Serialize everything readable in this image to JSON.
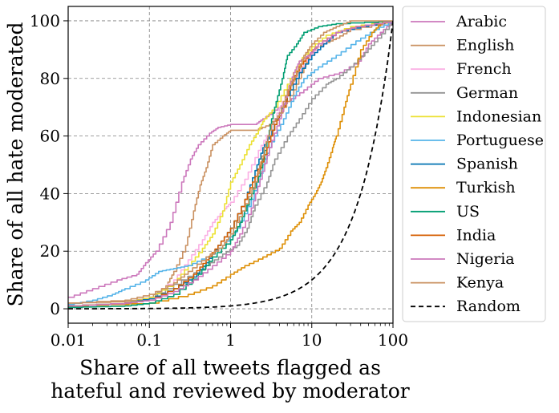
{
  "chart_data": {
    "type": "line",
    "x_scale": "log",
    "xlim": [
      0.01,
      100
    ],
    "ylim": [
      -5,
      105
    ],
    "grid": true,
    "grid_style": "dashed",
    "legend_position": "outside-right",
    "xlabel_lines": [
      "Share of all tweets flagged as",
      "hateful and reviewed by moderator"
    ],
    "ylabel": "Share of all hate moderated",
    "x_ticks": [
      {
        "value": 0.01,
        "label": "0.01"
      },
      {
        "value": 0.1,
        "label": "0.1"
      },
      {
        "value": 1,
        "label": "1"
      },
      {
        "value": 10,
        "label": "10"
      },
      {
        "value": 100,
        "label": "100"
      }
    ],
    "y_ticks": [
      {
        "value": 0,
        "label": "0"
      },
      {
        "value": 20,
        "label": "20"
      },
      {
        "value": 40,
        "label": "40"
      },
      {
        "value": 60,
        "label": "60"
      },
      {
        "value": 80,
        "label": "80"
      },
      {
        "value": 100,
        "label": "100"
      }
    ],
    "series": [
      {
        "name": "Arabic",
        "color": "#cc78bc",
        "dash": "solid",
        "points": [
          [
            0.01,
            4
          ],
          [
            0.02,
            7
          ],
          [
            0.04,
            10
          ],
          [
            0.07,
            12
          ],
          [
            0.09,
            16
          ],
          [
            0.12,
            20
          ],
          [
            0.18,
            30
          ],
          [
            0.25,
            44
          ],
          [
            0.32,
            52
          ],
          [
            0.4,
            57
          ],
          [
            0.55,
            61
          ],
          [
            0.7,
            63
          ],
          [
            1.0,
            64
          ],
          [
            2.0,
            64
          ],
          [
            2.5,
            66
          ],
          [
            3.5,
            69
          ],
          [
            5,
            72
          ],
          [
            8,
            76
          ],
          [
            12,
            80
          ],
          [
            22,
            82
          ],
          [
            38,
            86
          ],
          [
            50,
            92
          ],
          [
            70,
            96
          ],
          [
            100,
            100
          ]
        ]
      },
      {
        "name": "English",
        "color": "#ca9161",
        "dash": "solid",
        "points": [
          [
            0.01,
            2
          ],
          [
            0.05,
            2.5
          ],
          [
            0.1,
            4
          ],
          [
            0.16,
            8
          ],
          [
            0.2,
            13
          ],
          [
            0.28,
            22
          ],
          [
            0.35,
            34
          ],
          [
            0.42,
            43
          ],
          [
            0.5,
            49
          ],
          [
            0.6,
            57
          ],
          [
            0.8,
            60
          ],
          [
            1.0,
            62
          ],
          [
            1.5,
            62
          ],
          [
            2.0,
            62
          ],
          [
            3,
            64
          ],
          [
            4,
            68
          ],
          [
            6,
            76
          ],
          [
            8,
            84
          ],
          [
            10,
            90
          ],
          [
            14,
            92
          ],
          [
            20,
            94
          ],
          [
            30,
            97
          ],
          [
            100,
            100
          ]
        ]
      },
      {
        "name": "French",
        "color": "#fbafe4",
        "dash": "solid",
        "points": [
          [
            0.01,
            1
          ],
          [
            0.05,
            2
          ],
          [
            0.1,
            4
          ],
          [
            0.2,
            10
          ],
          [
            0.3,
            17
          ],
          [
            0.45,
            24
          ],
          [
            0.6,
            30
          ],
          [
            0.8,
            34
          ],
          [
            1.0,
            37
          ],
          [
            1.5,
            45
          ],
          [
            2.2,
            55
          ],
          [
            3,
            62
          ],
          [
            4,
            70
          ],
          [
            5.5,
            78
          ],
          [
            8,
            86
          ],
          [
            12,
            91
          ],
          [
            20,
            96
          ],
          [
            40,
            98
          ],
          [
            100,
            100
          ]
        ]
      },
      {
        "name": "German",
        "color": "#949494",
        "dash": "solid",
        "points": [
          [
            0.01,
            1
          ],
          [
            0.05,
            2
          ],
          [
            0.1,
            4
          ],
          [
            0.25,
            10
          ],
          [
            0.5,
            15
          ],
          [
            0.8,
            19
          ],
          [
            1.2,
            22
          ],
          [
            1.6,
            28
          ],
          [
            2.0,
            36
          ],
          [
            2.8,
            44
          ],
          [
            3.5,
            52
          ],
          [
            5,
            60
          ],
          [
            7,
            66
          ],
          [
            10,
            73
          ],
          [
            15,
            78
          ],
          [
            20,
            80
          ],
          [
            30,
            84
          ],
          [
            45,
            89
          ],
          [
            65,
            94
          ],
          [
            100,
            100
          ]
        ]
      },
      {
        "name": "Indonesian",
        "color": "#ece133",
        "dash": "solid",
        "points": [
          [
            0.01,
            1
          ],
          [
            0.05,
            2
          ],
          [
            0.1,
            4
          ],
          [
            0.2,
            9
          ],
          [
            0.3,
            15
          ],
          [
            0.45,
            21
          ],
          [
            0.6,
            26
          ],
          [
            0.8,
            34
          ],
          [
            1.0,
            44
          ],
          [
            1.3,
            50
          ],
          [
            1.7,
            57
          ],
          [
            2.2,
            62
          ],
          [
            2.6,
            66
          ],
          [
            3.5,
            70
          ],
          [
            5,
            78
          ],
          [
            7,
            86
          ],
          [
            10,
            91
          ],
          [
            15,
            95
          ],
          [
            30,
            98
          ],
          [
            100,
            100
          ]
        ]
      },
      {
        "name": "Portuguese",
        "color": "#56b4e9",
        "dash": "solid",
        "points": [
          [
            0.01,
            1.5
          ],
          [
            0.02,
            3
          ],
          [
            0.035,
            5
          ],
          [
            0.05,
            7
          ],
          [
            0.09,
            10
          ],
          [
            0.13,
            13
          ],
          [
            0.2,
            14
          ],
          [
            0.3,
            15
          ],
          [
            0.5,
            18
          ],
          [
            0.8,
            22
          ],
          [
            1.2,
            28
          ],
          [
            1.8,
            38
          ],
          [
            2.5,
            50
          ],
          [
            3.2,
            58
          ],
          [
            4.5,
            66
          ],
          [
            6,
            74
          ],
          [
            8,
            80
          ],
          [
            12,
            84
          ],
          [
            20,
            88
          ],
          [
            35,
            93
          ],
          [
            60,
            97
          ],
          [
            100,
            100
          ]
        ]
      },
      {
        "name": "Spanish",
        "color": "#0173b2",
        "dash": "solid",
        "points": [
          [
            0.01,
            1
          ],
          [
            0.05,
            2
          ],
          [
            0.1,
            3.5
          ],
          [
            0.2,
            7
          ],
          [
            0.35,
            11
          ],
          [
            0.5,
            16
          ],
          [
            0.7,
            22
          ],
          [
            1.0,
            28
          ],
          [
            1.5,
            38
          ],
          [
            2.0,
            48
          ],
          [
            2.5,
            56
          ],
          [
            3,
            60
          ],
          [
            4,
            68
          ],
          [
            5,
            74
          ],
          [
            7,
            82
          ],
          [
            10,
            88
          ],
          [
            14,
            92
          ],
          [
            20,
            96
          ],
          [
            40,
            98
          ],
          [
            100,
            100
          ]
        ]
      },
      {
        "name": "Turkish",
        "color": "#de8f05",
        "dash": "solid",
        "points": [
          [
            0.01,
            1
          ],
          [
            0.1,
            2
          ],
          [
            0.3,
            5
          ],
          [
            0.6,
            8
          ],
          [
            1.0,
            12
          ],
          [
            1.5,
            15
          ],
          [
            2.5,
            18
          ],
          [
            4,
            21
          ],
          [
            5.5,
            27
          ],
          [
            7,
            30
          ],
          [
            9,
            36
          ],
          [
            11,
            40
          ],
          [
            13,
            44
          ],
          [
            15,
            49
          ],
          [
            18,
            56
          ],
          [
            20,
            60
          ],
          [
            25,
            70
          ],
          [
            30,
            78
          ],
          [
            40,
            90
          ],
          [
            55,
            96
          ],
          [
            70,
            99
          ],
          [
            100,
            100
          ]
        ]
      },
      {
        "name": "US",
        "color": "#029e73",
        "dash": "solid",
        "points": [
          [
            0.01,
            0.5
          ],
          [
            0.05,
            1
          ],
          [
            0.1,
            2
          ],
          [
            0.2,
            5
          ],
          [
            0.4,
            12
          ],
          [
            0.6,
            18
          ],
          [
            1.0,
            24
          ],
          [
            1.3,
            30
          ],
          [
            1.7,
            38
          ],
          [
            2.2,
            46
          ],
          [
            2.8,
            58
          ],
          [
            3.2,
            66
          ],
          [
            3.8,
            74
          ],
          [
            4.5,
            82
          ],
          [
            5,
            88
          ],
          [
            6.5,
            92
          ],
          [
            8,
            96
          ],
          [
            12,
            98
          ],
          [
            20,
            99
          ],
          [
            100,
            100
          ]
        ]
      },
      {
        "name": "India",
        "color": "#d55e00",
        "dash": "solid",
        "points": [
          [
            0.01,
            1
          ],
          [
            0.05,
            2
          ],
          [
            0.1,
            3
          ],
          [
            0.2,
            7
          ],
          [
            0.35,
            12
          ],
          [
            0.5,
            17
          ],
          [
            0.7,
            22
          ],
          [
            1.0,
            28
          ],
          [
            1.5,
            38
          ],
          [
            2.0,
            46
          ],
          [
            2.8,
            56
          ],
          [
            3.5,
            64
          ],
          [
            4.5,
            70
          ],
          [
            5.5,
            78
          ],
          [
            7,
            84
          ],
          [
            9,
            88
          ],
          [
            12,
            92
          ],
          [
            20,
            96
          ],
          [
            35,
            98
          ],
          [
            100,
            100
          ]
        ]
      },
      {
        "name": "Nigeria",
        "color": "#cc78bc",
        "dash": "solid",
        "points": [
          [
            0.01,
            1
          ],
          [
            0.05,
            2
          ],
          [
            0.1,
            3
          ],
          [
            0.2,
            6
          ],
          [
            0.35,
            10
          ],
          [
            0.6,
            15
          ],
          [
            1.0,
            20
          ],
          [
            1.3,
            26
          ],
          [
            1.8,
            35
          ],
          [
            2.3,
            45
          ],
          [
            3,
            56
          ],
          [
            4,
            66
          ],
          [
            5,
            76
          ],
          [
            6,
            82
          ],
          [
            7,
            86
          ],
          [
            9,
            88
          ],
          [
            12,
            92
          ],
          [
            20,
            96
          ],
          [
            35,
            98
          ],
          [
            100,
            100
          ]
        ]
      },
      {
        "name": "Kenya",
        "color": "#ca9161",
        "dash": "solid",
        "points": [
          [
            0.01,
            2
          ],
          [
            0.05,
            3
          ],
          [
            0.1,
            5
          ],
          [
            0.2,
            9
          ],
          [
            0.3,
            13
          ],
          [
            0.5,
            18
          ],
          [
            0.8,
            22
          ],
          [
            1.0,
            26
          ],
          [
            1.4,
            34
          ],
          [
            2.0,
            44
          ],
          [
            2.6,
            56
          ],
          [
            3.2,
            64
          ],
          [
            4,
            68
          ],
          [
            5,
            76
          ],
          [
            6.5,
            82
          ],
          [
            8,
            88
          ],
          [
            10,
            92
          ],
          [
            14,
            96
          ],
          [
            20,
            98
          ],
          [
            30,
            100
          ],
          [
            100,
            100
          ]
        ]
      },
      {
        "name": "Random",
        "color": "#000000",
        "dash": "dashed",
        "formula": "y = x",
        "points": []
      }
    ]
  }
}
